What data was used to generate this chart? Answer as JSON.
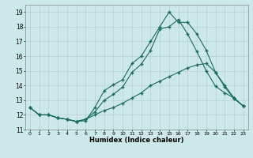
{
  "xlabel": "Humidex (Indice chaleur)",
  "background_color": "#cce8e8",
  "grid_color": "#b8d4d4",
  "line_color": "#1a6b5a",
  "xlim": [
    -0.5,
    23.5
  ],
  "ylim": [
    11,
    19.5
  ],
  "yticks": [
    11,
    12,
    13,
    14,
    15,
    16,
    17,
    18,
    19
  ],
  "xticks": [
    0,
    1,
    2,
    3,
    4,
    5,
    6,
    7,
    8,
    9,
    10,
    11,
    12,
    13,
    14,
    15,
    16,
    17,
    18,
    19,
    20,
    21,
    22,
    23
  ],
  "series": [
    {
      "x": [
        0,
        1,
        2,
        3,
        4,
        5,
        6,
        7,
        8,
        9,
        10,
        11,
        12,
        13,
        14,
        15,
        16,
        17,
        18,
        19,
        20,
        21,
        22,
        23
      ],
      "y": [
        12.5,
        12.0,
        12.0,
        11.8,
        11.7,
        11.55,
        11.6,
        12.5,
        13.65,
        14.05,
        14.4,
        15.5,
        16.0,
        17.0,
        18.0,
        19.0,
        18.3,
        18.3,
        17.5,
        16.4,
        14.9,
        13.9,
        13.1,
        12.6
      ]
    },
    {
      "x": [
        0,
        1,
        2,
        3,
        4,
        5,
        6,
        7,
        8,
        9,
        10,
        11,
        12,
        13,
        14,
        15,
        16,
        17,
        18,
        19,
        20,
        21,
        22,
        23
      ],
      "y": [
        12.5,
        12.0,
        12.0,
        11.8,
        11.7,
        11.55,
        11.7,
        12.2,
        13.0,
        13.4,
        13.9,
        14.9,
        15.45,
        16.4,
        17.85,
        18.0,
        18.5,
        17.5,
        16.3,
        15.0,
        13.95,
        13.5,
        13.15,
        12.6
      ]
    },
    {
      "x": [
        0,
        1,
        2,
        3,
        4,
        5,
        6,
        7,
        8,
        9,
        10,
        11,
        12,
        13,
        14,
        15,
        16,
        17,
        18,
        19,
        20,
        21,
        22,
        23
      ],
      "y": [
        12.5,
        12.0,
        12.0,
        11.8,
        11.7,
        11.55,
        11.7,
        12.0,
        12.3,
        12.5,
        12.8,
        13.15,
        13.5,
        14.0,
        14.3,
        14.6,
        14.9,
        15.2,
        15.4,
        15.5,
        14.9,
        14.0,
        13.15,
        12.6
      ]
    }
  ]
}
